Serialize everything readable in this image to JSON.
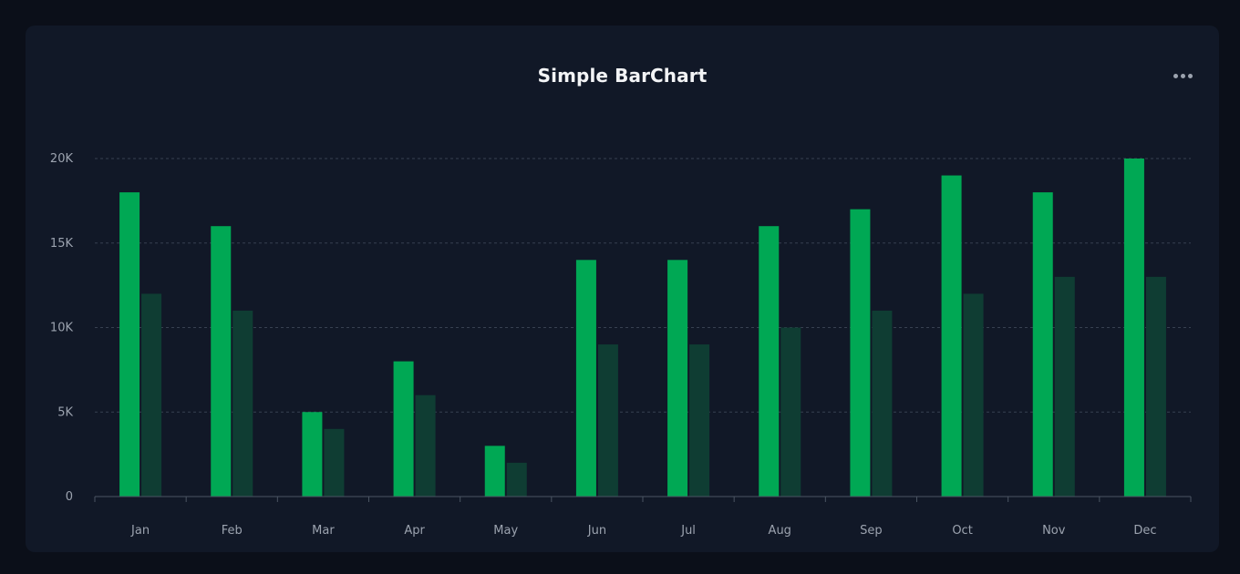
{
  "title": "Simple BarChart",
  "menu": {
    "icon": "more-horizontal-icon"
  },
  "colors": {
    "page_bg": "#0b0f19",
    "card_bg": "#111827",
    "series_primary": "#00a854",
    "series_secondary": "#0f3d33",
    "grid": "#374151",
    "tick_text": "#9ca3af",
    "title_text": "#f3f4f6"
  },
  "chart_data": {
    "type": "bar",
    "title": "Simple BarChart",
    "xlabel": "",
    "ylabel": "",
    "categories": [
      "Jan",
      "Feb",
      "Mar",
      "Apr",
      "May",
      "Jun",
      "Jul",
      "Aug",
      "Sep",
      "Oct",
      "Nov",
      "Dec"
    ],
    "series": [
      {
        "values": [
          18000,
          16000,
          5000,
          8000,
          3000,
          14000,
          14000,
          16000,
          17000,
          19000,
          18000,
          20000
        ]
      },
      {
        "values": [
          12000,
          11000,
          4000,
          6000,
          2000,
          9000,
          9000,
          10000,
          11000,
          12000,
          13000,
          13000
        ]
      }
    ],
    "ylim": [
      0,
      20000
    ],
    "yticks": [
      0,
      5000,
      10000,
      15000,
      20000
    ],
    "ytick_labels": [
      "0",
      "5K",
      "10K",
      "15K",
      "20K"
    ],
    "grid": true,
    "legend": "none"
  }
}
